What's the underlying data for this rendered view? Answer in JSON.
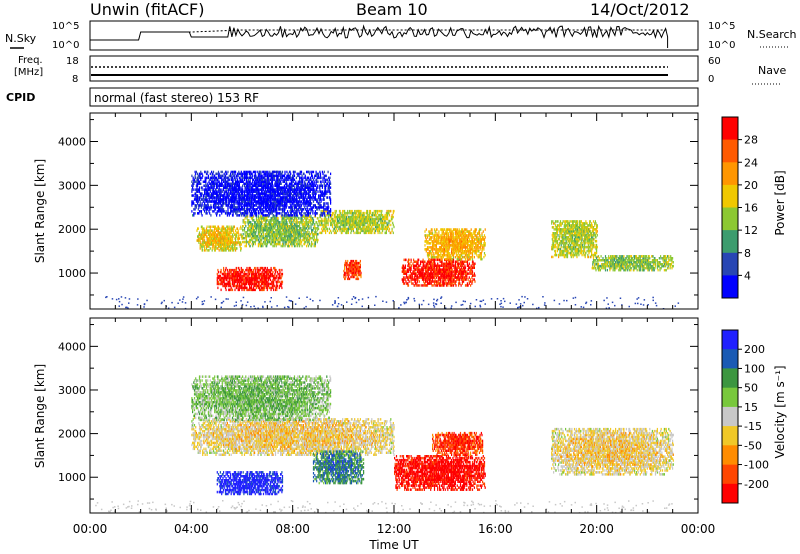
{
  "header": {
    "title": "Unwin (fitACF)",
    "beam": "Beam 10",
    "date": "14/Oct/2012"
  },
  "status_panels": {
    "nsky_label": "N.Sky",
    "nsearch_label": "N.Search",
    "nsky_ticks": [
      "10^5",
      "10^0"
    ],
    "freq_label": "Freq.",
    "freq_unit": "[MHz]",
    "freq_ticks": [
      "18",
      "8"
    ],
    "nave_label": "Nave",
    "nave_ticks": [
      "60",
      "0"
    ],
    "cpid_label": "CPID",
    "cpid_value": "normal (fast stereo) 153 RF"
  },
  "chart_data": [
    {
      "type": "heatmap",
      "name": "power",
      "ylabel": "Slant Range [km]",
      "ylim": [
        180,
        4650
      ],
      "yticks": [
        1000,
        2000,
        3000,
        4000
      ],
      "xlim": [
        0,
        24
      ],
      "colorbar": {
        "label": "Power [dB]",
        "ticks": [
          "28",
          "24",
          "20",
          "16",
          "12",
          "8",
          "4"
        ],
        "colors": [
          "#ff0000",
          "#ff5a00",
          "#ff9600",
          "#f0c800",
          "#8cc832",
          "#3c9c6e",
          "#2846b4",
          "#0000ff"
        ]
      },
      "regions": [
        {
          "t0": 5.0,
          "t1": 7.6,
          "r0": 600,
          "r1": 1100,
          "level": 0.92
        },
        {
          "t0": 4.2,
          "t1": 6.0,
          "r0": 1500,
          "r1": 2050,
          "level": 0.55
        },
        {
          "t0": 6.0,
          "t1": 9.0,
          "r0": 1600,
          "r1": 2300,
          "level": 0.45
        },
        {
          "t0": 9.0,
          "t1": 12.0,
          "r0": 1900,
          "r1": 2400,
          "level": 0.5
        },
        {
          "t0": 10.0,
          "t1": 10.7,
          "r0": 850,
          "r1": 1300,
          "level": 0.85
        },
        {
          "t0": 12.3,
          "t1": 15.2,
          "r0": 700,
          "r1": 1300,
          "level": 0.9
        },
        {
          "t0": 13.2,
          "t1": 15.6,
          "r0": 1300,
          "r1": 2000,
          "level": 0.6
        },
        {
          "t0": 4.0,
          "t1": 9.5,
          "r0": 2300,
          "r1": 3300,
          "level": 0.08
        },
        {
          "t0": 18.2,
          "t1": 20.0,
          "r0": 1350,
          "r1": 2200,
          "level": 0.5
        },
        {
          "t0": 19.8,
          "t1": 23.0,
          "r0": 1050,
          "r1": 1400,
          "level": 0.45
        }
      ]
    },
    {
      "type": "heatmap",
      "name": "velocity",
      "ylabel": "Slant Range [km]",
      "ylim": [
        180,
        4650
      ],
      "yticks": [
        1000,
        2000,
        3000,
        4000
      ],
      "xlim": [
        0,
        24
      ],
      "xticks": [
        "00:00",
        "04:00",
        "08:00",
        "12:00",
        "16:00",
        "20:00",
        "00:00"
      ],
      "xlabel": "Time UT",
      "colorbar": {
        "label": "Velocity [m s⁻¹]",
        "ticks": [
          "200",
          "100",
          "50",
          "15",
          "-15",
          "-50",
          "-100",
          "-200"
        ],
        "colors": [
          "#2020ff",
          "#1a5ab4",
          "#3c9640",
          "#78c83c",
          "#c8c8c8",
          "#f0c828",
          "#ff8c00",
          "#ff4600",
          "#ff0000"
        ]
      },
      "regions": [
        {
          "t0": 5.0,
          "t1": 7.6,
          "r0": 600,
          "r1": 1100,
          "level": 0.95
        },
        {
          "t0": 4.0,
          "t1": 12.0,
          "r0": 1500,
          "r1": 2350,
          "level": 0.45
        },
        {
          "t0": 8.8,
          "t1": 10.8,
          "r0": 850,
          "r1": 1600,
          "level": 0.75
        },
        {
          "t0": 12.0,
          "t1": 15.6,
          "r0": 700,
          "r1": 1500,
          "level": 0.05
        },
        {
          "t0": 13.5,
          "t1": 15.5,
          "r0": 1500,
          "r1": 2000,
          "level": 0.15
        },
        {
          "t0": 18.2,
          "t1": 23.0,
          "r0": 1050,
          "r1": 2100,
          "level": 0.45
        },
        {
          "t0": 4.0,
          "t1": 9.5,
          "r0": 2300,
          "r1": 3300,
          "level": 0.6
        }
      ]
    }
  ]
}
